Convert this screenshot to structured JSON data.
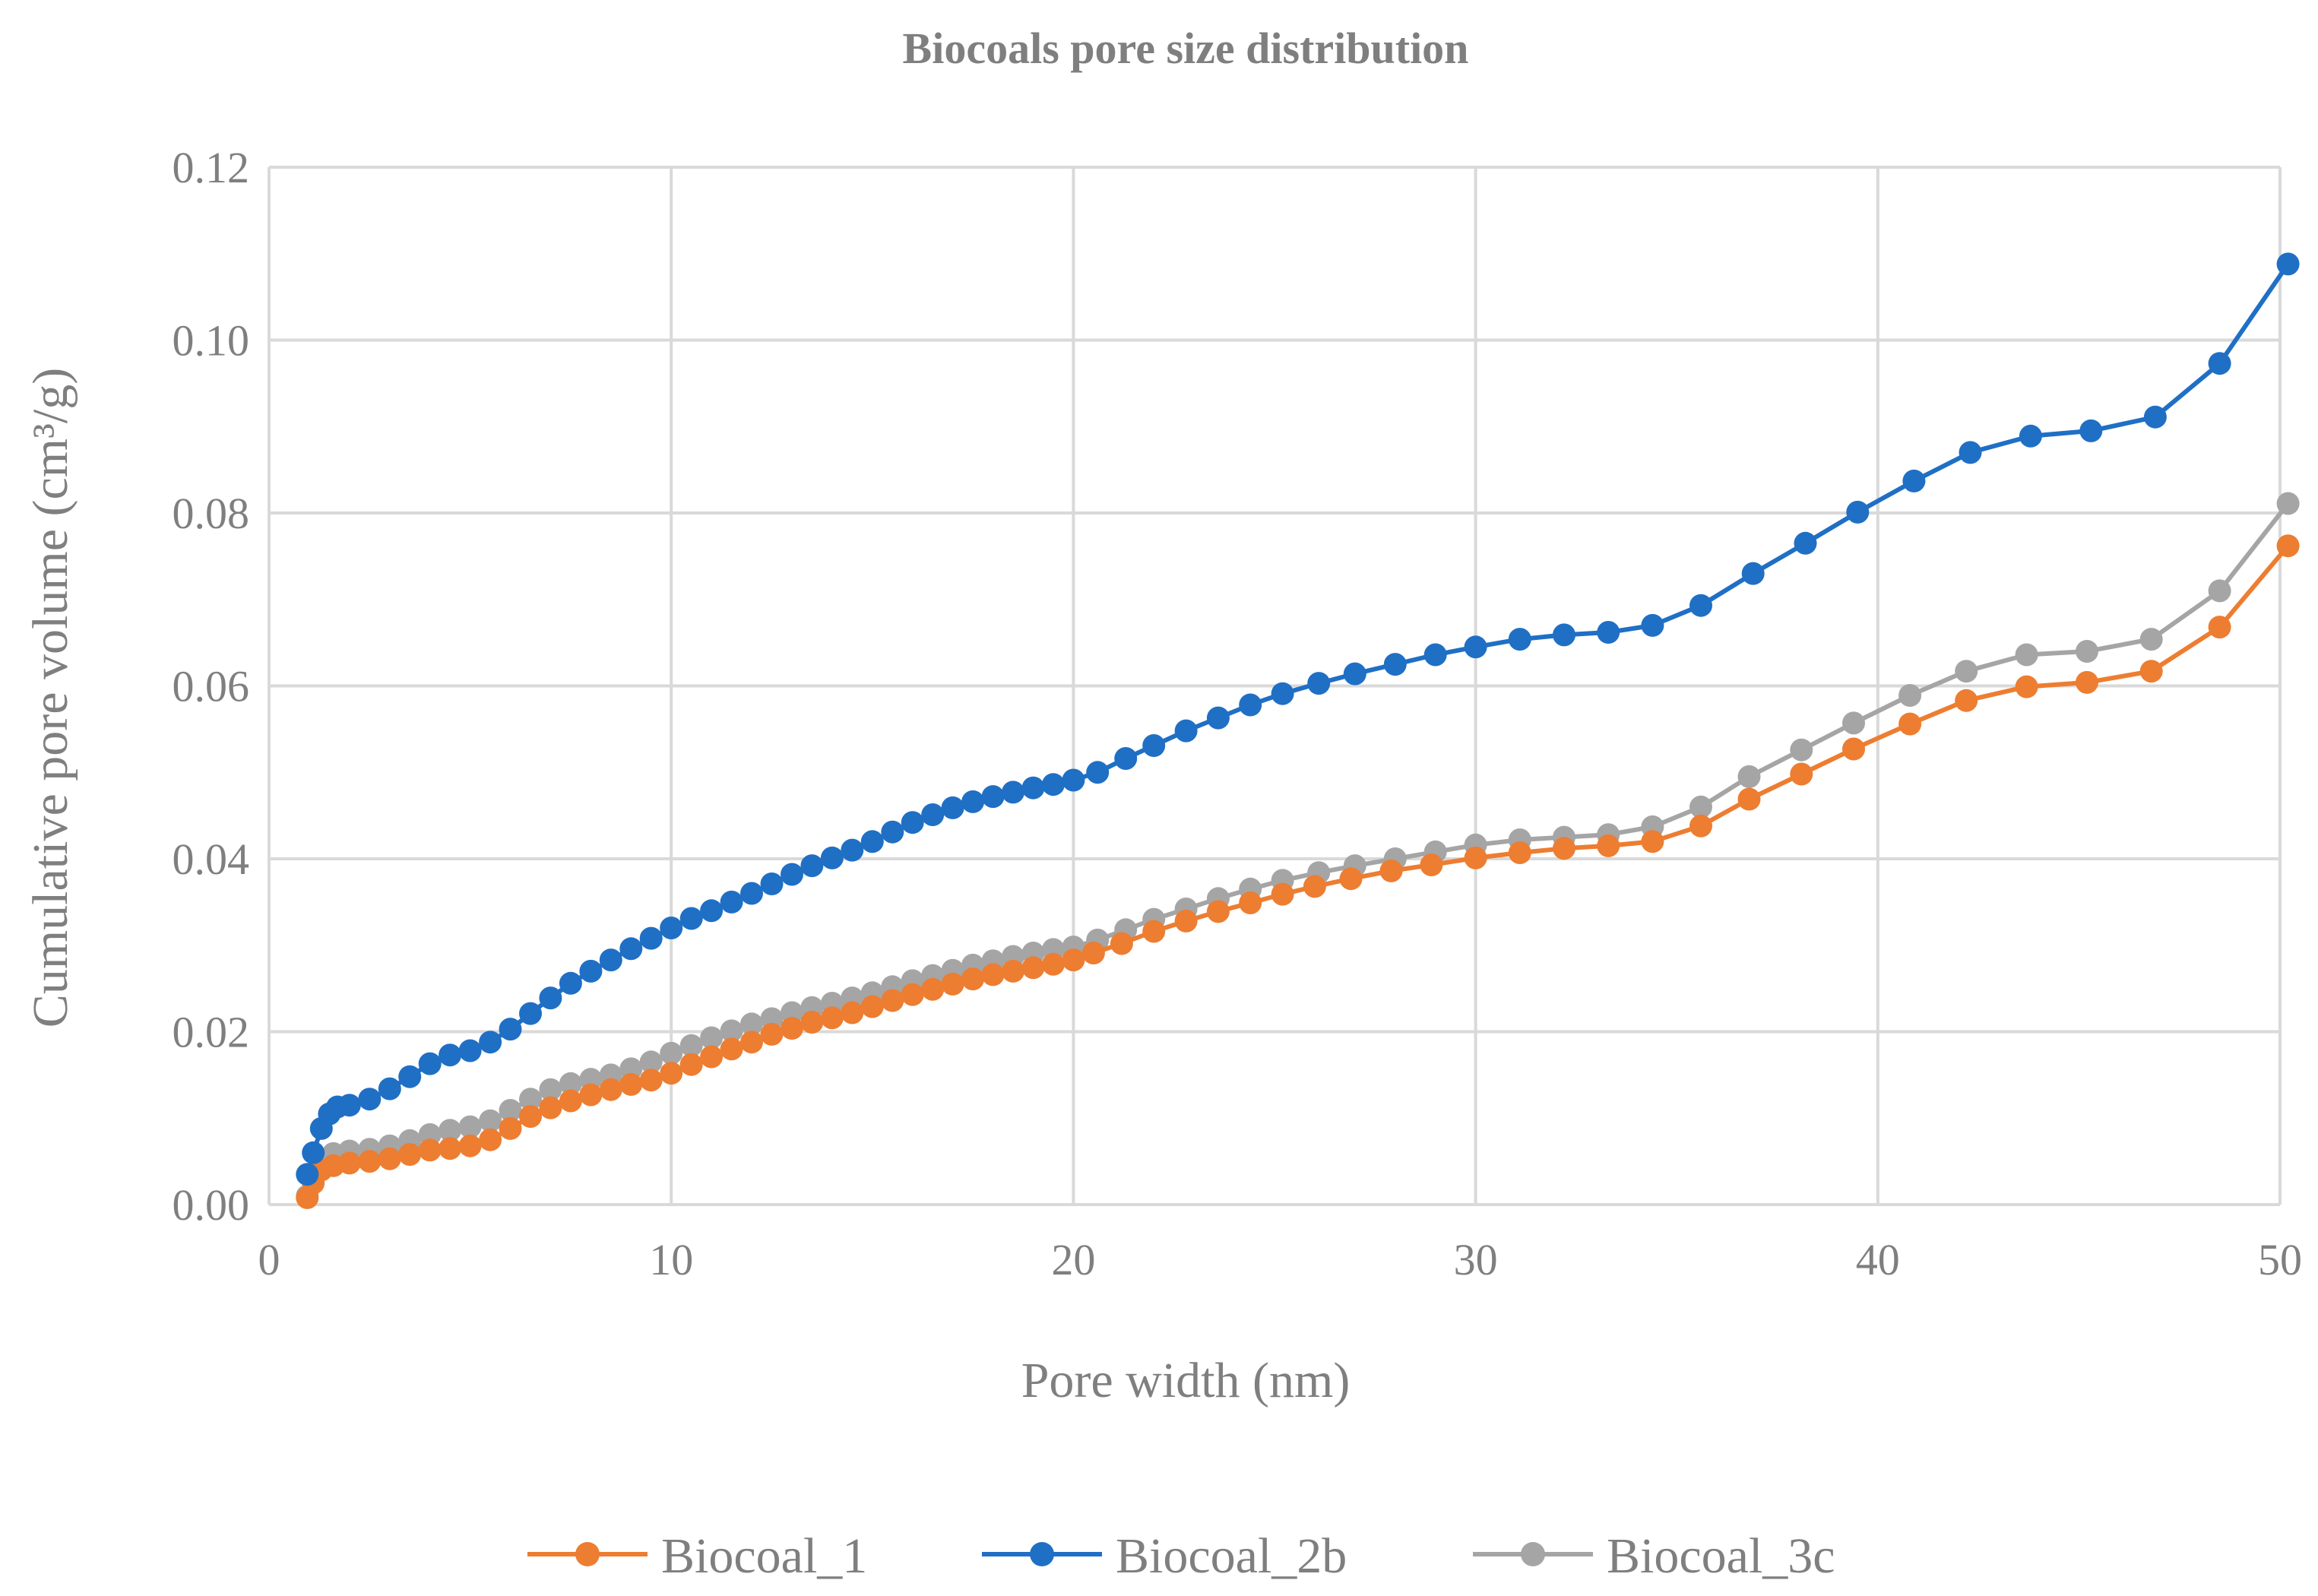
{
  "colors": {
    "background": "#ffffff",
    "grid": "#d9d9d9",
    "text": "#7f7f7f"
  },
  "chart_data": {
    "type": "line",
    "title": "Biocoals pore size distribution",
    "xlabel": "Pore width (nm)",
    "ylabel": "Cumulative pore volume (cm³/g)",
    "xlim": [
      0,
      50
    ],
    "ylim": [
      0,
      0.12
    ],
    "xticks": [
      0,
      10,
      20,
      30,
      40,
      50
    ],
    "xtick_labels": [
      "0",
      "10",
      "20",
      "30",
      "40",
      "50"
    ],
    "yticks": [
      0,
      0.02,
      0.04,
      0.06,
      0.08,
      0.1,
      0.12
    ],
    "ytick_labels": [
      "0.00",
      "0.02",
      "0.04",
      "0.06",
      "0.08",
      "0.10",
      "0.12"
    ],
    "grid": true,
    "legend_position": "bottom",
    "series": [
      {
        "name": "Biocoal_1",
        "color": "#ed7d31",
        "points": [
          [
            0.95,
            0.0008
          ],
          [
            1.1,
            0.0025
          ],
          [
            1.3,
            0.004
          ],
          [
            1.6,
            0.0045
          ],
          [
            2.0,
            0.0048
          ],
          [
            2.5,
            0.005
          ],
          [
            3.0,
            0.0053
          ],
          [
            3.5,
            0.0058
          ],
          [
            4.0,
            0.0063
          ],
          [
            4.5,
            0.0065
          ],
          [
            5.0,
            0.0068
          ],
          [
            5.5,
            0.0075
          ],
          [
            6.0,
            0.0088
          ],
          [
            6.5,
            0.0102
          ],
          [
            7.0,
            0.0112
          ],
          [
            7.5,
            0.012
          ],
          [
            8.0,
            0.0127
          ],
          [
            8.5,
            0.0133
          ],
          [
            9.0,
            0.0139
          ],
          [
            9.5,
            0.0144
          ],
          [
            10.0,
            0.0152
          ],
          [
            10.5,
            0.0162
          ],
          [
            11.0,
            0.0171
          ],
          [
            11.5,
            0.018
          ],
          [
            12.0,
            0.0188
          ],
          [
            12.5,
            0.0197
          ],
          [
            13.0,
            0.0204
          ],
          [
            13.5,
            0.0211
          ],
          [
            14.0,
            0.0216
          ],
          [
            14.5,
            0.0222
          ],
          [
            15.0,
            0.0229
          ],
          [
            15.5,
            0.0236
          ],
          [
            16.0,
            0.0243
          ],
          [
            16.5,
            0.0249
          ],
          [
            17.0,
            0.0255
          ],
          [
            17.5,
            0.0261
          ],
          [
            18.0,
            0.0266
          ],
          [
            18.5,
            0.027
          ],
          [
            19.0,
            0.0274
          ],
          [
            19.5,
            0.0278
          ],
          [
            20.0,
            0.0283
          ],
          [
            20.5,
            0.0291
          ],
          [
            21.2,
            0.0302
          ],
          [
            22.0,
            0.0316
          ],
          [
            22.8,
            0.0328
          ],
          [
            23.6,
            0.0339
          ],
          [
            24.4,
            0.0349
          ],
          [
            25.2,
            0.0359
          ],
          [
            26.0,
            0.0368
          ],
          [
            26.9,
            0.0377
          ],
          [
            27.9,
            0.0386
          ],
          [
            28.9,
            0.0393
          ],
          [
            30.0,
            0.0401
          ],
          [
            31.1,
            0.0407
          ],
          [
            32.2,
            0.0412
          ],
          [
            33.3,
            0.0415
          ],
          [
            34.4,
            0.042
          ],
          [
            35.6,
            0.0438
          ],
          [
            36.8,
            0.0469
          ],
          [
            38.1,
            0.0498
          ],
          [
            39.4,
            0.0527
          ],
          [
            40.8,
            0.0556
          ],
          [
            42.2,
            0.0583
          ],
          [
            43.7,
            0.0599
          ],
          [
            45.2,
            0.0604
          ],
          [
            46.8,
            0.0617
          ],
          [
            48.5,
            0.0668
          ],
          [
            50.2,
            0.0762
          ]
        ]
      },
      {
        "name": "Biocoal_2b",
        "color": "#1f6fc5",
        "points": [
          [
            0.95,
            0.0035
          ],
          [
            1.1,
            0.006
          ],
          [
            1.3,
            0.0088
          ],
          [
            1.5,
            0.0105
          ],
          [
            1.7,
            0.0113
          ],
          [
            2.0,
            0.0115
          ],
          [
            2.5,
            0.0122
          ],
          [
            3.0,
            0.0134
          ],
          [
            3.5,
            0.0148
          ],
          [
            4.0,
            0.0163
          ],
          [
            4.5,
            0.0173
          ],
          [
            5.0,
            0.0178
          ],
          [
            5.5,
            0.0188
          ],
          [
            6.0,
            0.0203
          ],
          [
            6.5,
            0.0221
          ],
          [
            7.0,
            0.0239
          ],
          [
            7.5,
            0.0256
          ],
          [
            8.0,
            0.027
          ],
          [
            8.5,
            0.0283
          ],
          [
            9.0,
            0.0296
          ],
          [
            9.5,
            0.0308
          ],
          [
            10.0,
            0.032
          ],
          [
            10.5,
            0.0331
          ],
          [
            11.0,
            0.034
          ],
          [
            11.5,
            0.035
          ],
          [
            12.0,
            0.036
          ],
          [
            12.5,
            0.0371
          ],
          [
            13.0,
            0.0382
          ],
          [
            13.5,
            0.0392
          ],
          [
            14.0,
            0.0401
          ],
          [
            14.5,
            0.041
          ],
          [
            15.0,
            0.042
          ],
          [
            15.5,
            0.0431
          ],
          [
            16.0,
            0.0442
          ],
          [
            16.5,
            0.0451
          ],
          [
            17.0,
            0.0459
          ],
          [
            17.5,
            0.0466
          ],
          [
            18.0,
            0.0472
          ],
          [
            18.5,
            0.0477
          ],
          [
            19.0,
            0.0482
          ],
          [
            19.5,
            0.0486
          ],
          [
            20.0,
            0.0491
          ],
          [
            20.6,
            0.05
          ],
          [
            21.3,
            0.0516
          ],
          [
            22.0,
            0.0531
          ],
          [
            22.8,
            0.0548
          ],
          [
            23.6,
            0.0563
          ],
          [
            24.4,
            0.0578
          ],
          [
            25.2,
            0.0591
          ],
          [
            26.1,
            0.0603
          ],
          [
            27.0,
            0.0614
          ],
          [
            28.0,
            0.0625
          ],
          [
            29.0,
            0.0636
          ],
          [
            30.0,
            0.0645
          ],
          [
            31.1,
            0.0654
          ],
          [
            32.2,
            0.0659
          ],
          [
            33.3,
            0.0662
          ],
          [
            34.4,
            0.067
          ],
          [
            35.6,
            0.0693
          ],
          [
            36.9,
            0.073
          ],
          [
            38.2,
            0.0765
          ],
          [
            39.5,
            0.0801
          ],
          [
            40.9,
            0.0837
          ],
          [
            42.3,
            0.087
          ],
          [
            43.8,
            0.0889
          ],
          [
            45.3,
            0.0895
          ],
          [
            46.9,
            0.0911
          ],
          [
            48.5,
            0.0973
          ],
          [
            50.2,
            0.1088
          ]
        ]
      },
      {
        "name": "Biocoal_3c",
        "color": "#a5a5a5",
        "points": [
          [
            0.95,
            0.001
          ],
          [
            1.1,
            0.003
          ],
          [
            1.3,
            0.005
          ],
          [
            1.6,
            0.0059
          ],
          [
            2.0,
            0.0062
          ],
          [
            2.5,
            0.0064
          ],
          [
            3.0,
            0.0068
          ],
          [
            3.5,
            0.0074
          ],
          [
            4.0,
            0.0081
          ],
          [
            4.5,
            0.0086
          ],
          [
            5.0,
            0.009
          ],
          [
            5.5,
            0.0097
          ],
          [
            6.0,
            0.0109
          ],
          [
            6.5,
            0.0122
          ],
          [
            7.0,
            0.0133
          ],
          [
            7.5,
            0.014
          ],
          [
            8.0,
            0.0145
          ],
          [
            8.5,
            0.015
          ],
          [
            9.0,
            0.0157
          ],
          [
            9.5,
            0.0165
          ],
          [
            10.0,
            0.0175
          ],
          [
            10.5,
            0.0184
          ],
          [
            11.0,
            0.0193
          ],
          [
            11.5,
            0.0201
          ],
          [
            12.0,
            0.0209
          ],
          [
            12.5,
            0.0215
          ],
          [
            13.0,
            0.0222
          ],
          [
            13.5,
            0.0228
          ],
          [
            14.0,
            0.0233
          ],
          [
            14.5,
            0.0239
          ],
          [
            15.0,
            0.0245
          ],
          [
            15.5,
            0.0252
          ],
          [
            16.0,
            0.0259
          ],
          [
            16.5,
            0.0265
          ],
          [
            17.0,
            0.0271
          ],
          [
            17.5,
            0.0277
          ],
          [
            18.0,
            0.0282
          ],
          [
            18.5,
            0.0287
          ],
          [
            19.0,
            0.0291
          ],
          [
            19.5,
            0.0295
          ],
          [
            20.0,
            0.0298
          ],
          [
            20.6,
            0.0306
          ],
          [
            21.3,
            0.0318
          ],
          [
            22.0,
            0.033
          ],
          [
            22.8,
            0.0342
          ],
          [
            23.6,
            0.0354
          ],
          [
            24.4,
            0.0365
          ],
          [
            25.2,
            0.0375
          ],
          [
            26.1,
            0.0384
          ],
          [
            27.0,
            0.0392
          ],
          [
            28.0,
            0.04
          ],
          [
            29.0,
            0.0408
          ],
          [
            30.0,
            0.0416
          ],
          [
            31.1,
            0.0422
          ],
          [
            32.2,
            0.0425
          ],
          [
            33.3,
            0.0428
          ],
          [
            34.4,
            0.0437
          ],
          [
            35.6,
            0.046
          ],
          [
            36.8,
            0.0495
          ],
          [
            38.1,
            0.0526
          ],
          [
            39.4,
            0.0557
          ],
          [
            40.8,
            0.0589
          ],
          [
            42.2,
            0.0617
          ],
          [
            43.7,
            0.0636
          ],
          [
            45.2,
            0.064
          ],
          [
            46.8,
            0.0654
          ],
          [
            48.5,
            0.071
          ],
          [
            50.2,
            0.0811
          ]
        ]
      }
    ]
  }
}
